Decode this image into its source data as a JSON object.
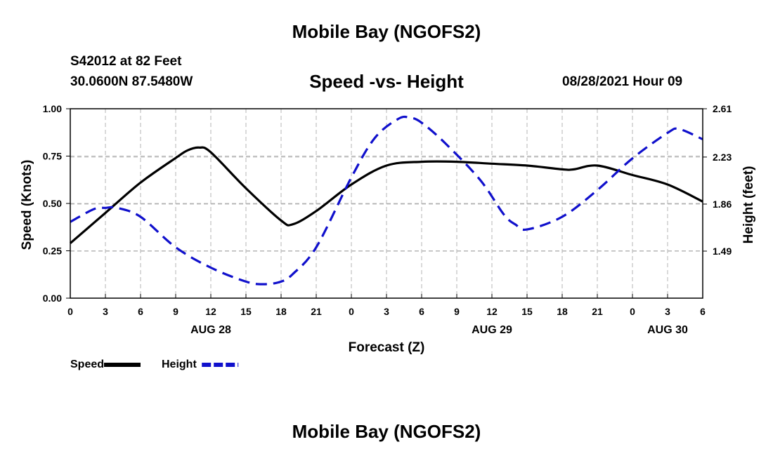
{
  "header": {
    "title": "Mobile Bay (NGOFS2)",
    "station": "S42012 at 82 Feet",
    "coords": "30.0600N  87.5480W",
    "subtitle": "Speed -vs- Height",
    "datetime": "08/28/2021 Hour 09"
  },
  "footer": {
    "title": "Mobile Bay (NGOFS2)"
  },
  "colors": {
    "speed": "#000000",
    "height": "#1010cc",
    "grid": "#b4b4b4"
  },
  "chart_data": {
    "type": "line",
    "xlabel": "Forecast (Z)",
    "ylabel_left": "Speed (Knots)",
    "ylabel_right": "Height (feet)",
    "x_unit": "hours",
    "xlim": [
      0,
      54
    ],
    "ylim_left": [
      0,
      1
    ],
    "ylim_right": [
      1.12,
      2.61
    ],
    "x_ticks": [
      0,
      3,
      6,
      9,
      12,
      15,
      18,
      21,
      24,
      27,
      30,
      33,
      36,
      39,
      42,
      45,
      48,
      51,
      54
    ],
    "x_tick_labels": [
      "0",
      "3",
      "6",
      "9",
      "12",
      "15",
      "18",
      "21",
      "0",
      "3",
      "6",
      "9",
      "12",
      "15",
      "18",
      "21",
      "0",
      "3",
      "6"
    ],
    "date_labels": [
      {
        "x": 12,
        "label": "AUG 28"
      },
      {
        "x": 36,
        "label": "AUG 29"
      },
      {
        "x": 51,
        "label": "AUG 30"
      }
    ],
    "y_left_ticks": [
      0,
      0.25,
      0.5,
      0.75,
      1.0
    ],
    "y_left_tick_labels": [
      "0.00",
      "0.25",
      "0.50",
      "0.75",
      "1.00"
    ],
    "y_right_ticks": [
      1.49,
      1.86,
      2.23,
      2.61
    ],
    "y_right_tick_labels": [
      "1.49",
      "1.86",
      "2.23",
      "2.61"
    ],
    "grid": true,
    "legend_position": "bottom-left",
    "series": [
      {
        "name": "Speed",
        "axis": "left",
        "style": "solid",
        "x": [
          0,
          3,
          6,
          9,
          10,
          11,
          12,
          15,
          18,
          19,
          21,
          24,
          27,
          30,
          33,
          36,
          39,
          42,
          43,
          45,
          48,
          51,
          54
        ],
        "y": [
          0.29,
          0.45,
          0.61,
          0.74,
          0.78,
          0.795,
          0.77,
          0.58,
          0.41,
          0.39,
          0.46,
          0.6,
          0.7,
          0.72,
          0.72,
          0.71,
          0.7,
          0.68,
          0.68,
          0.7,
          0.65,
          0.6,
          0.51
        ]
      },
      {
        "name": "Height",
        "axis": "right",
        "style": "dashed",
        "x": [
          0,
          2,
          3,
          4,
          6,
          9,
          12,
          15,
          16.5,
          18,
          19,
          21,
          24,
          26,
          28,
          29,
          30,
          32,
          35,
          37,
          38,
          39,
          42,
          45,
          48,
          51,
          52,
          54
        ],
        "y": [
          1.72,
          1.82,
          1.83,
          1.83,
          1.76,
          1.52,
          1.36,
          1.25,
          1.23,
          1.25,
          1.31,
          1.52,
          2.07,
          2.38,
          2.53,
          2.54,
          2.5,
          2.34,
          2.05,
          1.78,
          1.7,
          1.66,
          1.76,
          1.97,
          2.22,
          2.42,
          2.45,
          2.37
        ]
      }
    ]
  }
}
